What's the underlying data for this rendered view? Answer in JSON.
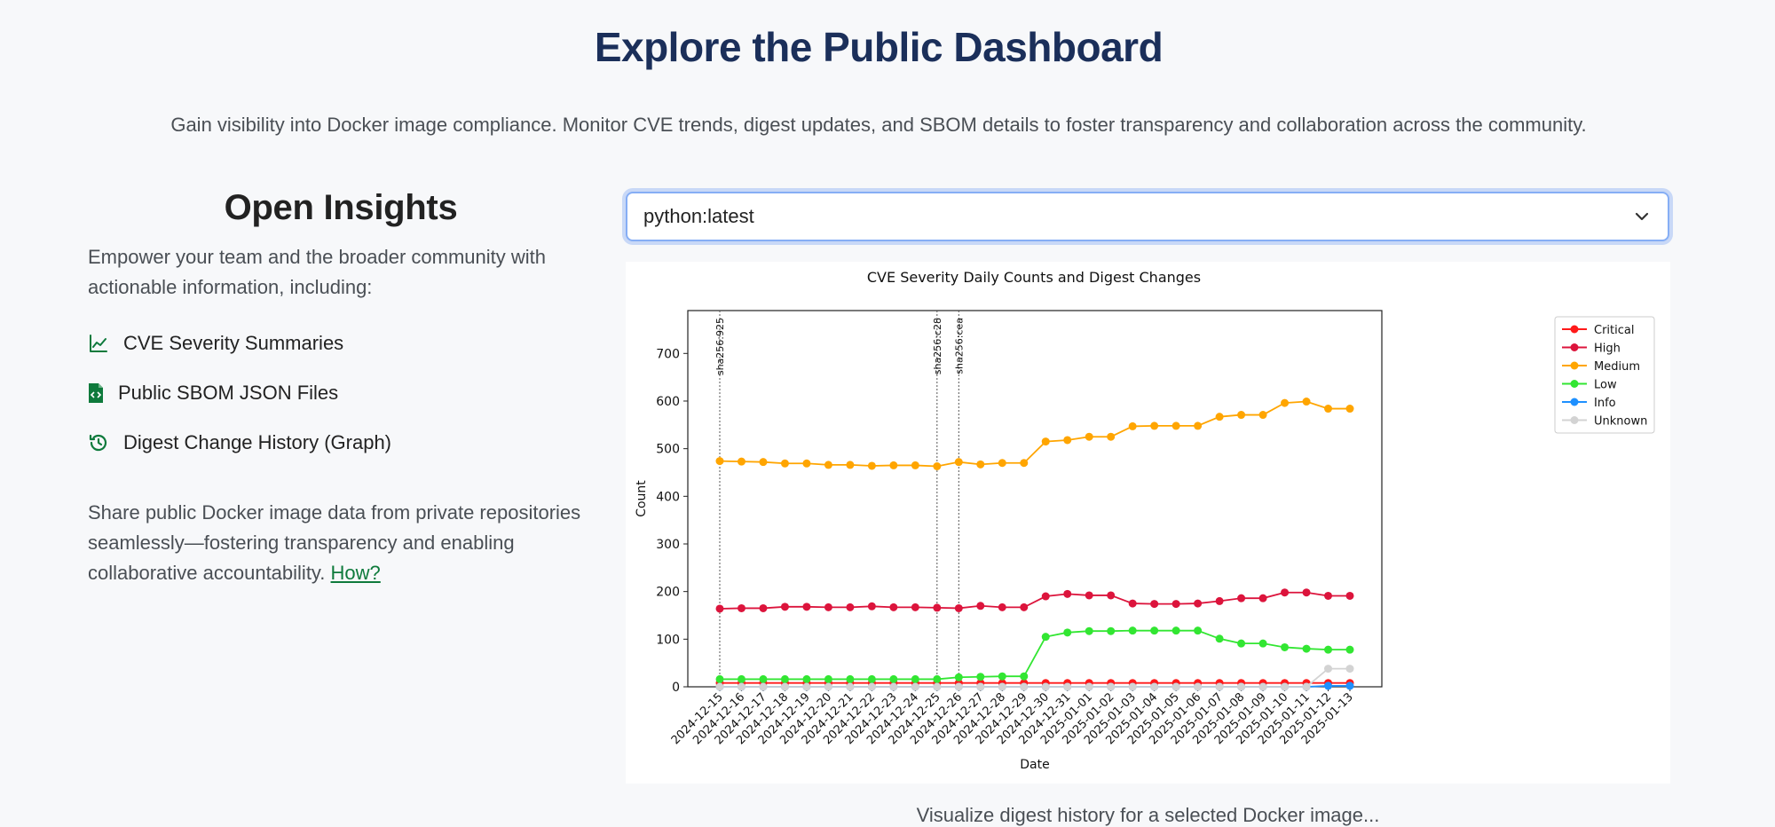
{
  "header": {
    "title": "Explore the Public Dashboard",
    "subtitle": "Gain visibility into Docker image compliance. Monitor CVE trends, digest updates, and SBOM details to foster transparency and collaboration across the community."
  },
  "insights": {
    "title": "Open Insights",
    "intro": "Empower your team and the broader community with actionable information, including:",
    "features": [
      {
        "label": "CVE Severity Summaries",
        "icon": "line-chart-icon"
      },
      {
        "label": "Public SBOM JSON Files",
        "icon": "code-file-icon"
      },
      {
        "label": "Digest Change History (Graph)",
        "icon": "history-icon"
      }
    ],
    "share_text": "Share public Docker image data from private repositories seamlessly—fostering transparency and enabling collaborative accountability.",
    "how_link": "How?"
  },
  "image_select": {
    "value": "python:latest"
  },
  "colors": {
    "title": "#1b2f5a",
    "accent_green": "#0e7a3c",
    "critical": "#ff1a1a",
    "high": "#dc143c",
    "medium": "#ffa500",
    "low": "#32e632",
    "info": "#1e90ff",
    "unknown": "#d3d3d3"
  },
  "chart_data": {
    "type": "line",
    "title": "CVE Severity Daily Counts and Digest Changes",
    "xlabel": "Date",
    "ylabel": "Count",
    "ylim": [
      0,
      790
    ],
    "yticks": [
      0,
      100,
      200,
      300,
      400,
      500,
      600,
      700
    ],
    "grid": false,
    "legend_position": "upper-right-outside",
    "x": [
      "2024-12-15",
      "2024-12-16",
      "2024-12-17",
      "2024-12-18",
      "2024-12-19",
      "2024-12-20",
      "2024-12-21",
      "2024-12-22",
      "2024-12-23",
      "2024-12-24",
      "2024-12-25",
      "2024-12-26",
      "2024-12-27",
      "2024-12-28",
      "2024-12-29",
      "2024-12-30",
      "2024-12-31",
      "2025-01-01",
      "2025-01-02",
      "2025-01-03",
      "2025-01-04",
      "2025-01-05",
      "2025-01-06",
      "2025-01-07",
      "2025-01-08",
      "2025-01-09",
      "2025-01-10",
      "2025-01-11",
      "2025-01-12",
      "2025-01-13"
    ],
    "digest_changes": [
      {
        "x": "2024-12-15",
        "label": "sha256:925"
      },
      {
        "x": "2024-12-25",
        "label": "sha256:c28"
      },
      {
        "x": "2024-12-26",
        "label": "sha256:cea"
      }
    ],
    "series": [
      {
        "name": "Critical",
        "color": "#ff1a1a",
        "values": [
          8,
          8,
          8,
          8,
          8,
          8,
          8,
          8,
          8,
          8,
          8,
          8,
          8,
          8,
          8,
          8,
          8,
          8,
          8,
          8,
          8,
          8,
          8,
          8,
          8,
          8,
          8,
          8,
          8,
          8
        ]
      },
      {
        "name": "High",
        "color": "#dc143c",
        "values": [
          164,
          165,
          165,
          168,
          168,
          167,
          167,
          169,
          167,
          167,
          166,
          165,
          170,
          167,
          167,
          190,
          195,
          192,
          192,
          175,
          174,
          174,
          175,
          180,
          186,
          186,
          198,
          198,
          191,
          191
        ]
      },
      {
        "name": "Medium",
        "color": "#ffa500",
        "values": [
          474,
          473,
          472,
          469,
          469,
          466,
          466,
          464,
          465,
          465,
          463,
          472,
          467,
          470,
          470,
          515,
          518,
          525,
          525,
          547,
          548,
          548,
          548,
          567,
          571,
          571,
          596,
          599,
          584,
          584
        ]
      },
      {
        "name": "Low",
        "color": "#32e632",
        "values": [
          16,
          16,
          16,
          16,
          16,
          16,
          16,
          16,
          16,
          16,
          16,
          20,
          21,
          22,
          22,
          105,
          114,
          117,
          117,
          118,
          118,
          118,
          118,
          101,
          91,
          91,
          83,
          80,
          78,
          78
        ]
      },
      {
        "name": "Info",
        "color": "#1e90ff",
        "values": [
          0,
          0,
          0,
          0,
          0,
          0,
          0,
          0,
          0,
          0,
          0,
          0,
          0,
          0,
          0,
          0,
          0,
          0,
          0,
          0,
          0,
          0,
          0,
          0,
          0,
          0,
          0,
          0,
          2,
          2
        ]
      },
      {
        "name": "Unknown",
        "color": "#d3d3d3",
        "values": [
          0,
          0,
          0,
          0,
          0,
          0,
          0,
          0,
          0,
          0,
          0,
          0,
          0,
          0,
          0,
          0,
          0,
          0,
          0,
          0,
          0,
          0,
          0,
          0,
          0,
          0,
          0,
          0,
          38,
          38
        ]
      }
    ]
  },
  "caption": "Visualize digest history for a selected Docker image..."
}
